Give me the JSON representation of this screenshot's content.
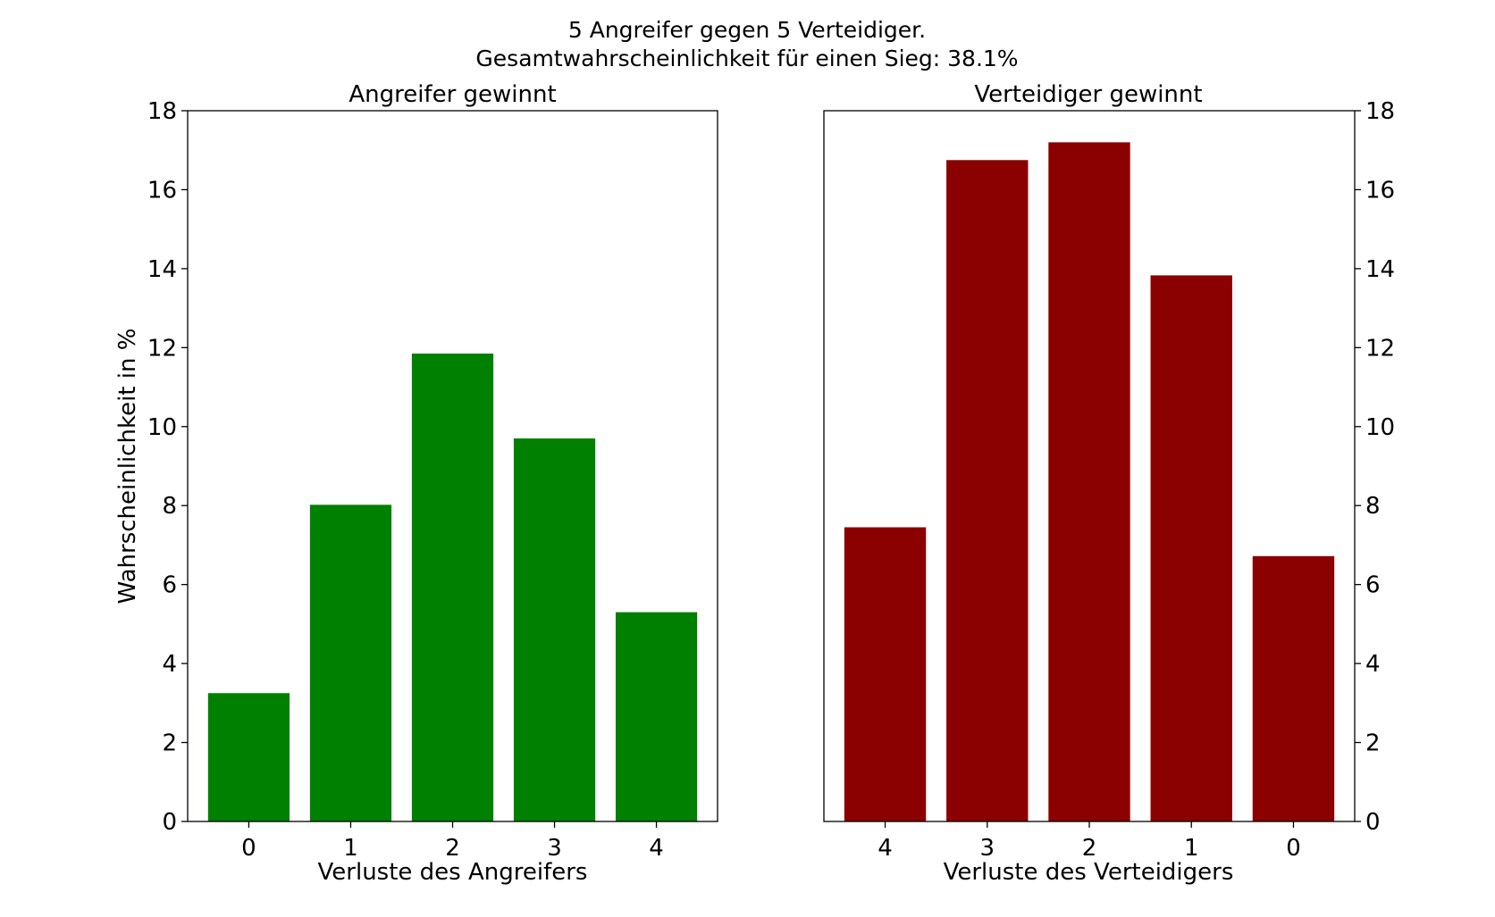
{
  "figure": {
    "suptitle_line1": "5 Angreifer gegen 5 Verteidiger.",
    "suptitle_line2": "Gesamtwahrscheinlichkeit für einen Sieg: 38.1%"
  },
  "chart_data": [
    {
      "type": "bar",
      "title": "Angreifer gewinnt",
      "xlabel": "Verluste des Angreifers",
      "ylabel": "Wahrscheinlichkeit in %",
      "categories": [
        "0",
        "1",
        "2",
        "3",
        "4"
      ],
      "values": [
        3.25,
        8.02,
        11.85,
        9.7,
        5.3
      ],
      "ylim": [
        0,
        18
      ],
      "yticks": [
        0,
        2,
        4,
        6,
        8,
        10,
        12,
        14,
        16,
        18
      ],
      "yaxis_side": "left",
      "color": "#008000",
      "grid": false
    },
    {
      "type": "bar",
      "title": "Verteidiger gewinnt",
      "xlabel": "Verluste des Verteidigers",
      "ylabel": "",
      "categories": [
        "4",
        "3",
        "2",
        "1",
        "0"
      ],
      "values": [
        7.45,
        16.75,
        17.2,
        13.83,
        6.72
      ],
      "ylim": [
        0,
        18
      ],
      "yticks": [
        0,
        2,
        4,
        6,
        8,
        10,
        12,
        14,
        16,
        18
      ],
      "yaxis_side": "right",
      "color": "#8b0000",
      "grid": false
    }
  ]
}
